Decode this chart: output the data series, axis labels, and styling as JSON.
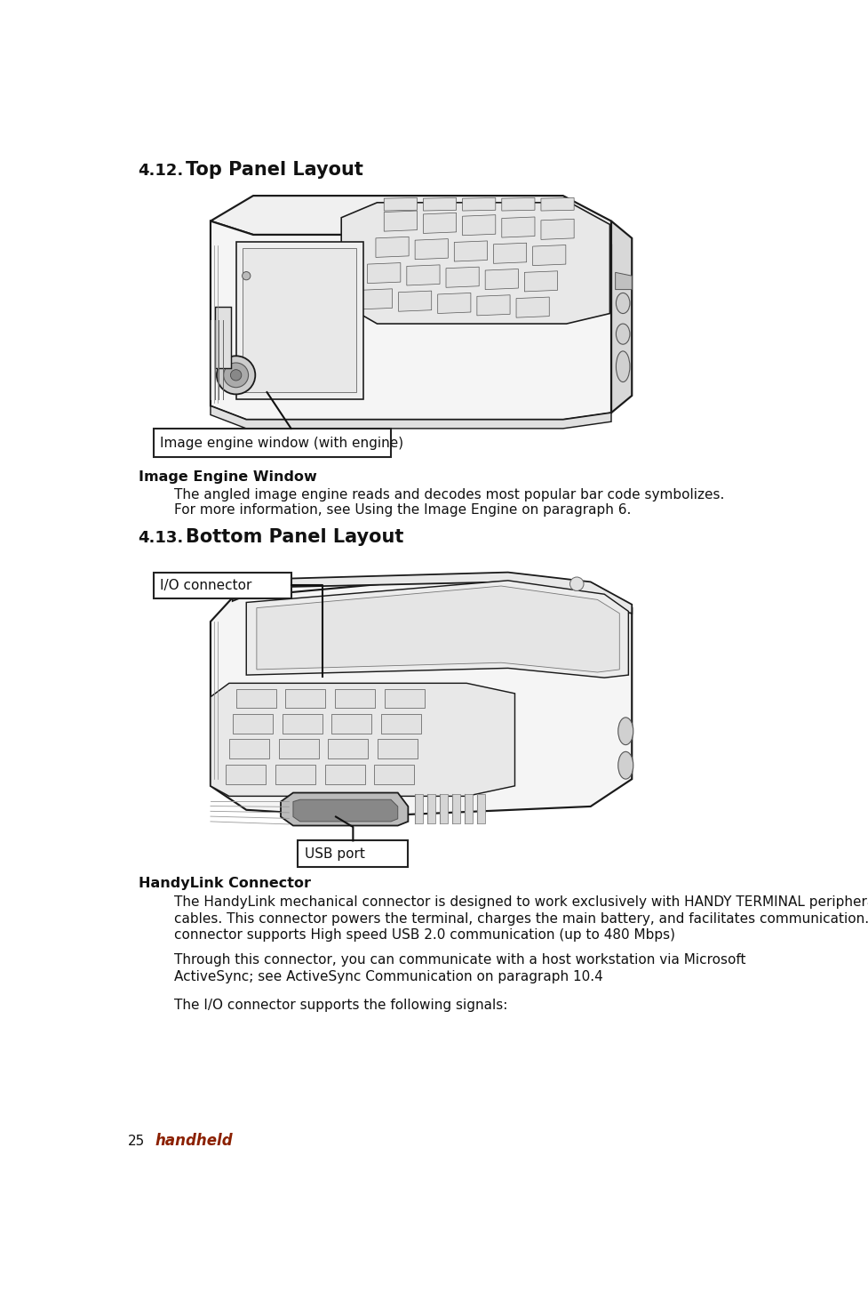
{
  "bg_color": "#ffffff",
  "section1_number": "4.12.",
  "section1_title": "Top Panel Layout",
  "section2_number": "4.13.",
  "section2_title": "Bottom Panel Layout",
  "callout1_text": "Image engine window (with engine)",
  "callout2_text": "I/O connector",
  "callout3_text": "USB port",
  "heading1": "Image Engine Window",
  "para1_line1": "The angled image engine reads and decodes most popular bar code symbolizes.",
  "para1_line2": "For more information, see Using the Image Engine on paragraph 6.",
  "heading2": "HandyLink Connector",
  "para2_line1": "The HandyLink mechanical connector is designed to work exclusively with HANDY TERMINAL peripherals and",
  "para2_line2": "cables. This connector powers the terminal, charges the main battery, and facilitates communication. This",
  "para2_line3": "connector supports High speed USB 2.0 communication (up to 480 Mbps)",
  "para3_line1": "Through this connector, you can communicate with a host workstation via Microsoft",
  "para3_line2": "ActiveSync; see ActiveSync Communication on paragraph 10.4",
  "para4_line1": "The I/O connector supports the following signals:",
  "footer_number": "25",
  "footer_brand": "handheld",
  "footer_color": "#8B2000",
  "title_fontsize": 15,
  "section_number_fontsize": 13,
  "heading_fontsize": 11.5,
  "body_fontsize": 11,
  "footer_fontsize": 11,
  "line_color": "#1a1a1a",
  "line_lw": 1.3
}
